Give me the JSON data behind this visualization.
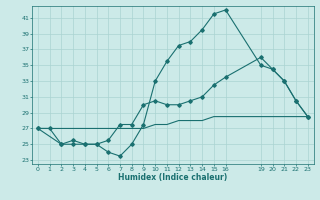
{
  "title": "",
  "xlabel": "Humidex (Indice chaleur)",
  "ylabel": "",
  "bg_color": "#cceae8",
  "grid_color": "#aad4d2",
  "line_color": "#1a7070",
  "xlim": [
    -0.5,
    23.5
  ],
  "ylim": [
    22.5,
    42.5
  ],
  "xticks": [
    0,
    1,
    2,
    3,
    4,
    5,
    6,
    7,
    8,
    9,
    10,
    11,
    12,
    13,
    14,
    15,
    16,
    19,
    20,
    21,
    22,
    23
  ],
  "yticks": [
    23,
    25,
    27,
    29,
    31,
    33,
    35,
    37,
    39,
    41
  ],
  "curve1_x": [
    0,
    1,
    2,
    3,
    4,
    5,
    6,
    7,
    8,
    9,
    10,
    11,
    12,
    13,
    14,
    15,
    16,
    19,
    20,
    21,
    22,
    23
  ],
  "curve1_y": [
    27,
    27,
    25,
    25,
    25,
    25,
    24,
    23.5,
    25,
    27.5,
    33,
    35.5,
    37.5,
    38,
    39.5,
    41.5,
    42,
    35,
    34.5,
    33,
    30.5,
    28.5
  ],
  "curve2_x": [
    0,
    2,
    3,
    4,
    5,
    6,
    7,
    8,
    9,
    10,
    11,
    12,
    13,
    14,
    15,
    16,
    19,
    20,
    21,
    22,
    23
  ],
  "curve2_y": [
    27,
    25,
    25.5,
    25,
    25,
    25.5,
    27.5,
    27.5,
    30,
    30.5,
    30,
    30,
    30.5,
    31,
    32.5,
    33.5,
    36,
    34.5,
    33,
    30.5,
    28.5
  ],
  "curve3_x": [
    0,
    1,
    2,
    3,
    4,
    5,
    6,
    7,
    8,
    9,
    10,
    11,
    12,
    13,
    14,
    15,
    16,
    17,
    18,
    19,
    20,
    21,
    22,
    23
  ],
  "curve3_y": [
    27,
    27,
    27,
    27,
    27,
    27,
    27,
    27,
    27,
    27,
    27.5,
    27.5,
    28,
    28,
    28,
    28.5,
    28.5,
    28.5,
    28.5,
    28.5,
    28.5,
    28.5,
    28.5,
    28.5
  ]
}
